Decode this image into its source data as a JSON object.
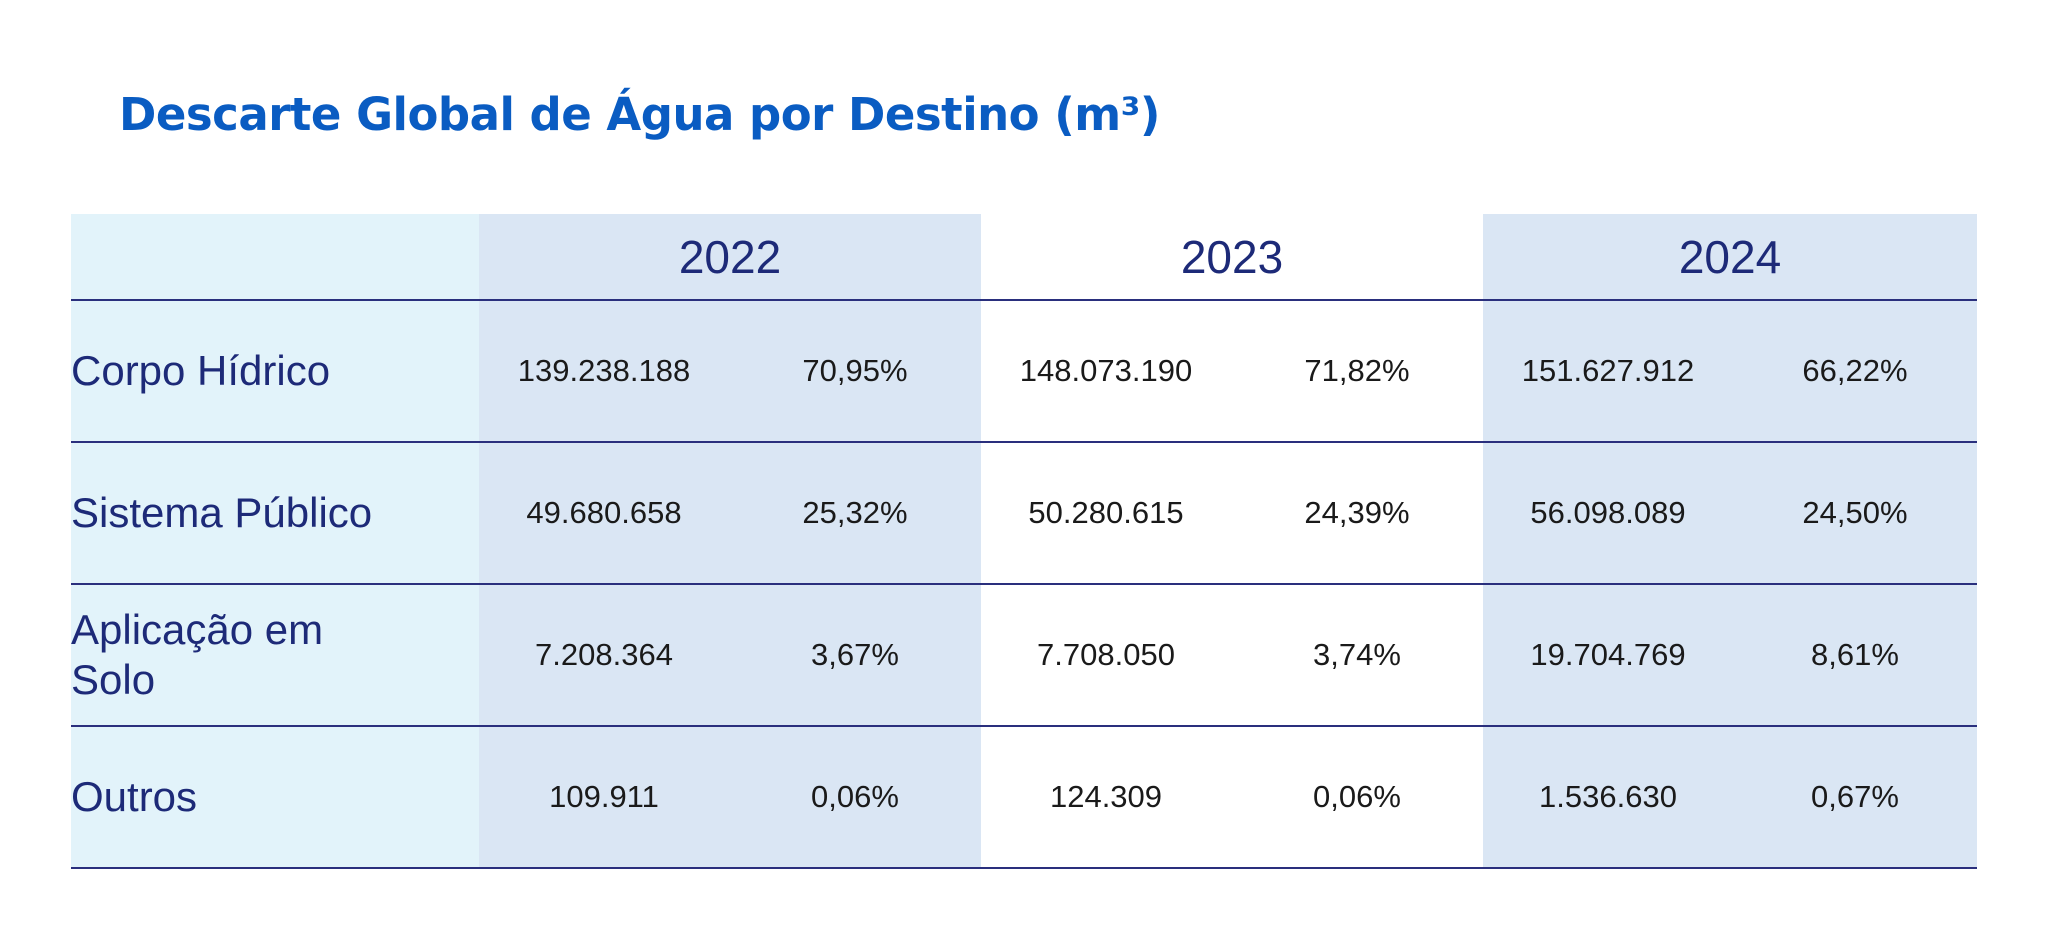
{
  "title": "Descarte Global de Água por Destino (m³)",
  "years": [
    "2022",
    "2023",
    "2024"
  ],
  "rows": [
    {
      "label": "Corpo Hídrico",
      "values": [
        "139.238.188",
        "70,95%",
        "148.073.190",
        "71,82%",
        "151.627.912",
        "66,22%"
      ]
    },
    {
      "label": "Sistema Público",
      "values": [
        "49.680.658",
        "25,32%",
        "50.280.615",
        "24,39%",
        "56.098.089",
        "24,50%"
      ]
    },
    {
      "label": "Aplicação em Solo",
      "values": [
        "7.208.364",
        "3,67%",
        "7.708.050",
        "3,74%",
        "19.704.769",
        "8,61%"
      ]
    },
    {
      "label": "Outros",
      "values": [
        "109.911",
        "0,06%",
        "124.309",
        "0,06%",
        "1.536.630",
        "0,67%"
      ]
    }
  ],
  "colors": {
    "title": "#0a5cc2",
    "text": "#1d2a78",
    "label_bg": "#e2f3fa",
    "band_bg": "#dae6f4",
    "rule": "#2a2f7d"
  }
}
